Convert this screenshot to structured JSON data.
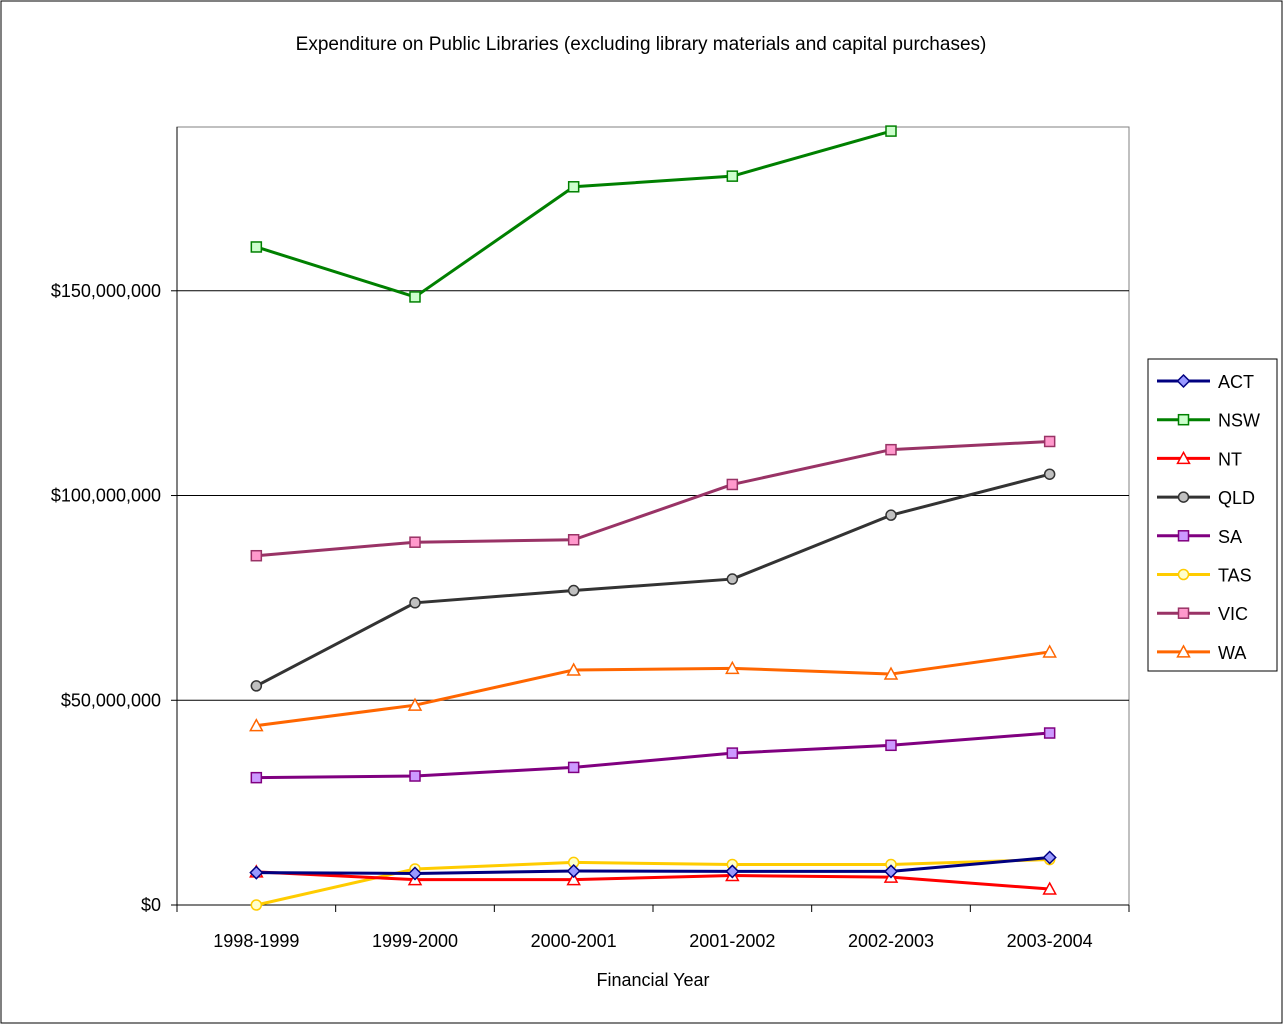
{
  "chart_data": {
    "type": "line",
    "title": "Expenditure on Public Libraries (excluding library materials and capital purchases)",
    "xlabel": "Financial Year",
    "ylabel": "",
    "categories": [
      "1998-1999",
      "1999-2000",
      "2000-2001",
      "2001-2002",
      "2002-2003",
      "2003-2004"
    ],
    "ylim": [
      0,
      190000000
    ],
    "yticks": [
      0,
      50000000,
      100000000,
      150000000
    ],
    "ytick_labels": [
      "$0",
      "$50,000,000",
      "$100,000,000",
      "$150,000,000"
    ],
    "grid": true,
    "legend_position": "right",
    "series": [
      {
        "name": "ACT",
        "color": "#000080",
        "marker": "diamond",
        "marker_fill": "#9999ff",
        "values": [
          7900000,
          7700000,
          8300000,
          8200000,
          8200000,
          11600000
        ]
      },
      {
        "name": "NSW",
        "color": "#008000",
        "marker": "square",
        "marker_fill": "#ccffcc",
        "values": [
          160700000,
          148500000,
          175400000,
          178000000,
          189000000,
          null
        ]
      },
      {
        "name": "NT",
        "color": "#ff0000",
        "marker": "triangle",
        "marker_fill": "#ffffff",
        "values": [
          8100000,
          6200000,
          6200000,
          7200000,
          6800000,
          3900000
        ]
      },
      {
        "name": "QLD",
        "color": "#333333",
        "marker": "circle",
        "marker_fill": "#c0c0c0",
        "values": [
          53500000,
          73800000,
          76800000,
          79600000,
          95200000,
          105200000
        ]
      },
      {
        "name": "SA",
        "color": "#800080",
        "marker": "square",
        "marker_fill": "#cc99ff",
        "values": [
          31100000,
          31500000,
          33600000,
          37100000,
          39000000,
          42000000
        ]
      },
      {
        "name": "TAS",
        "color": "#ffcc00",
        "marker": "circle",
        "marker_fill": "#ffffcc",
        "values": [
          0,
          8800000,
          10400000,
          9900000,
          9900000,
          11100000
        ]
      },
      {
        "name": "VIC",
        "color": "#993366",
        "marker": "square",
        "marker_fill": "#ff99cc",
        "values": [
          85300000,
          88600000,
          89200000,
          102700000,
          111200000,
          113200000
        ]
      },
      {
        "name": "WA",
        "color": "#ff6600",
        "marker": "triangle",
        "marker_fill": "#ffffff",
        "values": [
          43800000,
          48800000,
          57400000,
          57800000,
          56400000,
          61800000
        ]
      }
    ]
  }
}
